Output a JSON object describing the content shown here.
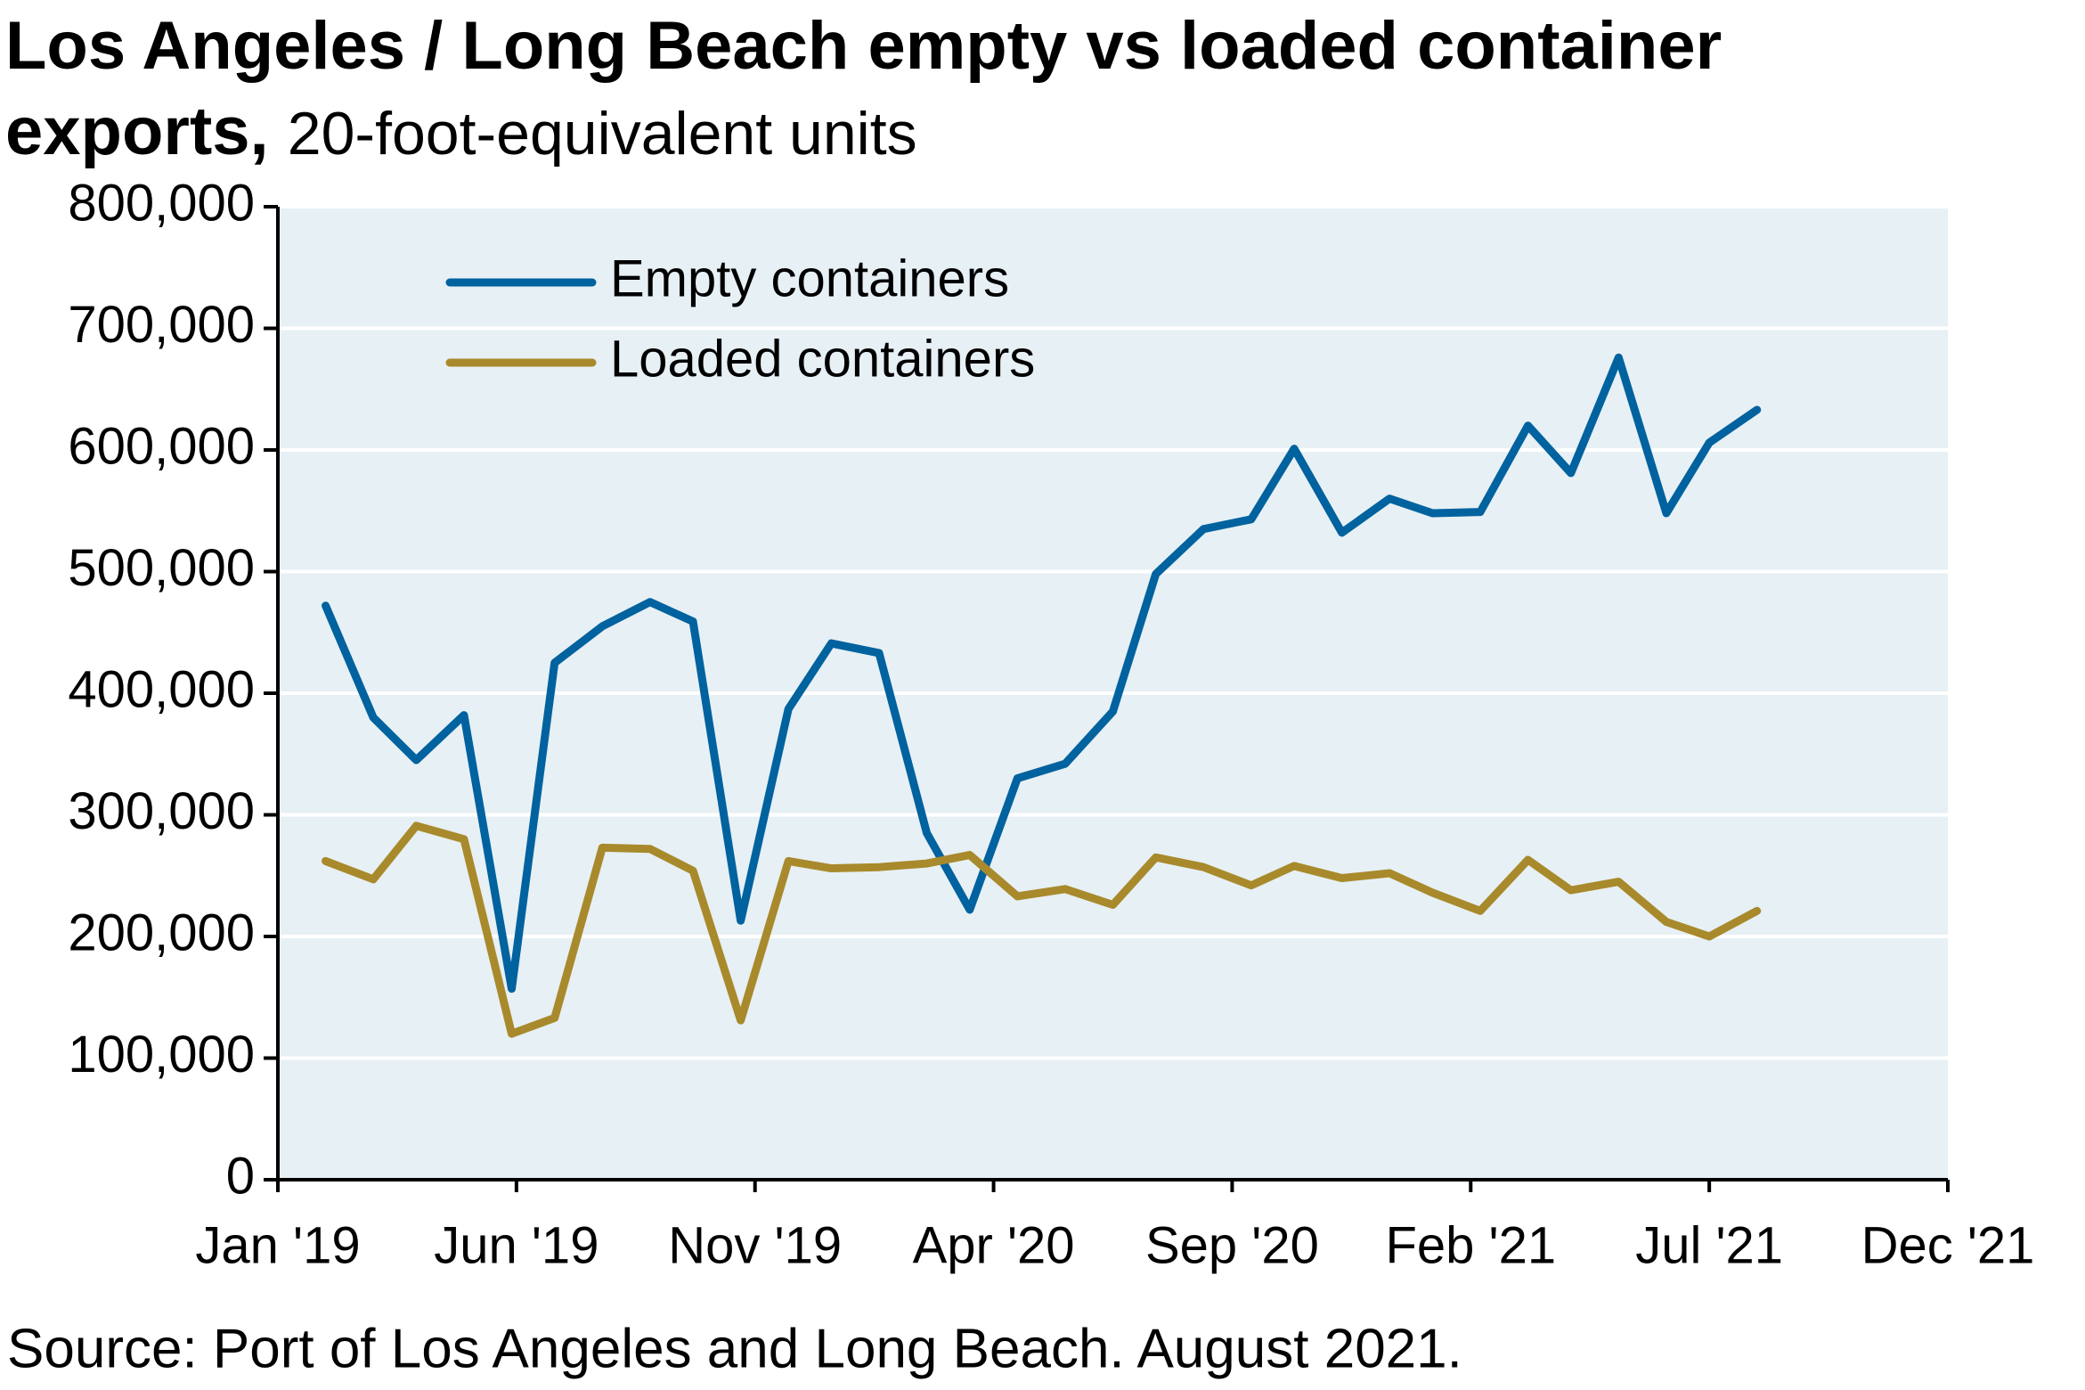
{
  "chart_data": {
    "type": "line",
    "title": "Los Angeles / Long Beach empty vs loaded container exports,",
    "subtitle": "20-foot-equivalent units",
    "source": "Source: Port of Los Angeles and Long Beach. August 2021.",
    "x": [
      1,
      2,
      2.9,
      3.9,
      4.9,
      5.8,
      6.8,
      7.8,
      8.7,
      9.7,
      10.7,
      11.6,
      12.6,
      13.6,
      14.5,
      15.5,
      16.5,
      17.5,
      18.4,
      19.4,
      20.4,
      21.3,
      22.3,
      23.3,
      24.2,
      25.2,
      26.2,
      27.1,
      28.1,
      29.1,
      30,
      31
    ],
    "series": [
      {
        "name": "Empty containers",
        "color": "#00629f",
        "values": [
          472000,
          380000,
          345000,
          382000,
          157000,
          425000,
          455000,
          475000,
          459000,
          213000,
          387000,
          441000,
          433000,
          285000,
          222000,
          330000,
          342000,
          385000,
          498000,
          535000,
          543000,
          601000,
          532000,
          560000,
          548000,
          549000,
          620000,
          581000,
          676000,
          548000,
          606000,
          633000
        ]
      },
      {
        "name": "Loaded containers",
        "color": "#a88a2c",
        "values": [
          262000,
          247000,
          291000,
          280000,
          120000,
          133000,
          273000,
          272000,
          254000,
          131000,
          262000,
          256000,
          257000,
          260000,
          267000,
          233000,
          239000,
          226000,
          265000,
          257000,
          242000,
          258000,
          248000,
          252000,
          236000,
          221000,
          263000,
          238000,
          245000,
          212000,
          200000,
          221000
        ]
      }
    ],
    "xlim": [
      0,
      35
    ],
    "xticks": [
      {
        "value": 0,
        "label": "Jan '19"
      },
      {
        "value": 5,
        "label": "Jun '19"
      },
      {
        "value": 10,
        "label": "Nov '19"
      },
      {
        "value": 15,
        "label": "Apr '20"
      },
      {
        "value": 20,
        "label": "Sep '20"
      },
      {
        "value": 25,
        "label": "Feb '21"
      },
      {
        "value": 30,
        "label": "Jul '21"
      },
      {
        "value": 35,
        "label": "Dec '21"
      }
    ],
    "ylim": [
      0,
      800000
    ],
    "yticks": [
      0,
      {
        "value": 100000,
        "label": "100,000"
      },
      {
        "value": 200000,
        "label": "200,000"
      },
      {
        "value": 300000,
        "label": "300,000"
      },
      {
        "value": 400000,
        "label": "400,000"
      },
      {
        "value": 500000,
        "label": "500,000"
      },
      {
        "value": 600000,
        "label": "600,000"
      },
      {
        "value": 700000,
        "label": "700,000"
      },
      {
        "value": 800000,
        "label": "800,000"
      }
    ],
    "grid": true,
    "legend": "upper left"
  }
}
